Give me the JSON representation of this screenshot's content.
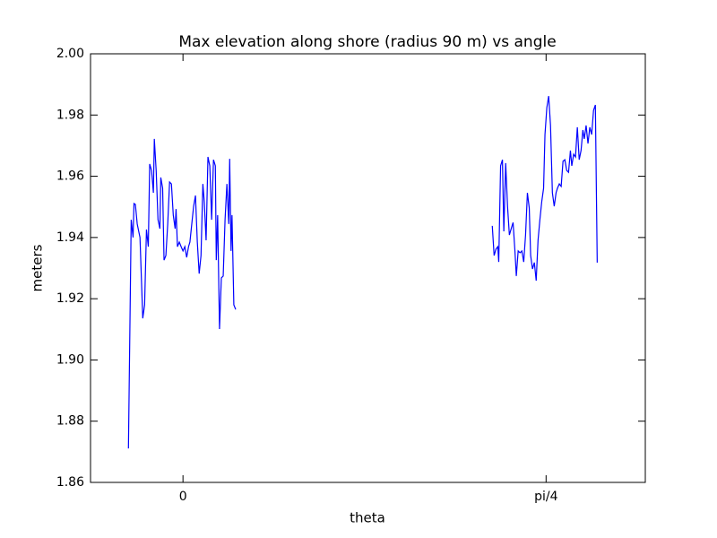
{
  "chart_data": {
    "type": "line",
    "title": "Max elevation along shore (radius 90 m) vs angle",
    "xlabel": "theta",
    "ylabel": "meters",
    "xlim": [
      -0.2,
      1.0
    ],
    "xticks": [
      0,
      {
        "value": 0.7854,
        "label": "pi/4"
      }
    ],
    "ylim": [
      1.86,
      2.0
    ],
    "yticks": [
      1.86,
      1.88,
      {
        "value": 1.9,
        "label": "1.90"
      },
      1.92,
      1.94,
      1.96,
      1.98,
      {
        "value": 2.0,
        "label": "2.00"
      }
    ],
    "grid": false,
    "series": [
      {
        "color": "#0000ff",
        "x": [
          -0.118,
          -0.112,
          -0.108,
          -0.106,
          -0.103,
          -0.099,
          -0.093,
          -0.087,
          -0.083,
          -0.079,
          -0.075,
          -0.072,
          -0.068,
          -0.064,
          -0.062,
          -0.058,
          -0.054,
          -0.05,
          -0.048,
          -0.044,
          -0.041,
          -0.037,
          -0.033,
          -0.029,
          -0.025,
          -0.021,
          -0.017,
          -0.015,
          -0.012,
          -0.008,
          -0.004,
          0,
          0.004,
          0.008,
          0.012,
          0.015,
          0.019,
          0.023,
          0.027,
          0.031,
          0.035,
          0.039,
          0.043,
          0.046,
          0.05,
          0.054,
          0.058,
          0.062,
          0.066,
          0.07,
          0.072,
          0.075,
          0.079,
          0.083,
          0.087,
          0.091,
          0.095,
          0.099,
          0.101,
          0.104,
          0.106,
          0.11,
          0.114,
          null,
          0.669,
          0.673,
          0.677,
          0.681,
          0.683,
          0.687,
          0.691,
          0.694,
          0.698,
          0.702,
          0.706,
          0.71,
          0.714,
          0.718,
          0.721,
          0.725,
          0.729,
          0.733,
          0.737,
          0.741,
          0.745,
          0.749,
          0.752,
          0.756,
          0.76,
          0.764,
          0.768,
          0.772,
          0.776,
          0.78,
          0.783,
          0.787,
          0.791,
          0.795,
          0.799,
          0.803,
          0.807,
          0.81,
          0.814,
          0.818,
          0.822,
          0.826,
          0.83,
          0.834,
          0.838,
          0.841,
          0.845,
          0.849,
          0.853,
          0.857,
          0.861,
          0.865,
          0.868,
          0.872,
          0.876,
          0.88,
          0.884,
          0.888,
          0.892,
          0.896
        ],
        "values": [
          1.8711,
          1.9458,
          1.94,
          1.9511,
          1.9508,
          1.9444,
          1.94,
          1.9136,
          1.918,
          1.9426,
          1.937,
          1.964,
          1.9619,
          1.9546,
          1.9722,
          1.9619,
          1.9458,
          1.9429,
          1.9596,
          1.9561,
          1.9326,
          1.9341,
          1.9444,
          1.9581,
          1.9575,
          1.9473,
          1.9429,
          1.9493,
          1.937,
          1.9385,
          1.937,
          1.9356,
          1.937,
          1.9335,
          1.937,
          1.9385,
          1.9444,
          1.9502,
          1.9537,
          1.9385,
          1.9282,
          1.9341,
          1.9575,
          1.9517,
          1.9391,
          1.9663,
          1.9634,
          1.9458,
          1.9654,
          1.9634,
          1.9326,
          1.9473,
          1.9101,
          1.9268,
          1.9274,
          1.9458,
          1.9575,
          1.9444,
          1.9657,
          1.9356,
          1.9473,
          1.918,
          1.9165,
          null,
          1.9438,
          1.9341,
          1.9362,
          1.937,
          1.932,
          1.9634,
          1.9654,
          1.942,
          1.9643,
          1.9502,
          1.9408,
          1.9429,
          1.9449,
          1.9356,
          1.9274,
          1.9356,
          1.935,
          1.9356,
          1.932,
          1.9408,
          1.9546,
          1.9496,
          1.9341,
          1.9297,
          1.9318,
          1.9259,
          1.9391,
          1.9458,
          1.9517,
          1.9561,
          1.9736,
          1.9824,
          1.9862,
          1.9766,
          1.9546,
          1.9502,
          1.9546,
          1.9561,
          1.9575,
          1.9567,
          1.9649,
          1.9654,
          1.9619,
          1.9613,
          1.9684,
          1.9634,
          1.9672,
          1.9663,
          1.976,
          1.9654,
          1.9684,
          1.9751,
          1.9722,
          1.9766,
          1.9707,
          1.976,
          1.9736,
          1.9815,
          1.9833,
          1.9318
        ]
      }
    ]
  }
}
